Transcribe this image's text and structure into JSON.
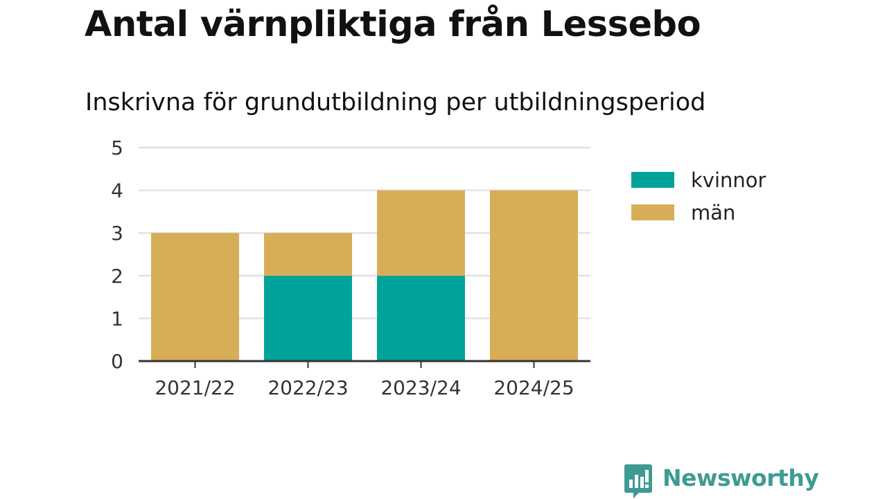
{
  "chart_data": {
    "type": "bar",
    "stacked": true,
    "title": "Antal värnpliktiga från Lessebo",
    "subtitle": "Inskrivna för grundutbildning per utbildningsperiod",
    "categories": [
      "2021/22",
      "2022/23",
      "2023/24",
      "2024/25"
    ],
    "series": [
      {
        "name": "kvinnor",
        "color": "#00a399",
        "values": [
          0,
          2,
          2,
          0
        ]
      },
      {
        "name": "män",
        "color": "#d8ad57",
        "values": [
          3,
          1,
          2,
          4
        ]
      }
    ],
    "ylim": [
      0,
      5
    ],
    "yticks": [
      "0",
      "1",
      "2",
      "3",
      "4",
      "5"
    ],
    "grid": true,
    "legend_position": "right"
  },
  "branding": {
    "logo_text": "Newsworthy",
    "logo_icon": "bar-chart-speech-bubble-icon",
    "logo_color": "#3e9b94"
  }
}
